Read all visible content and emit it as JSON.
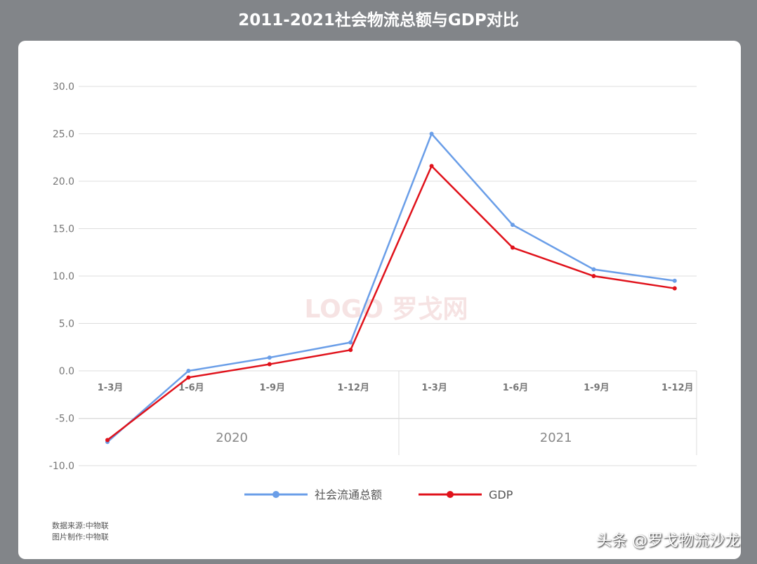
{
  "chart_data": {
    "type": "line",
    "title": "2011-2021社会物流总额与GDP对比",
    "categories": [
      "1-3月",
      "1-6月",
      "1-9月",
      "1-12月",
      "1-3月",
      "1-6月",
      "1-9月",
      "1-12月"
    ],
    "groups": [
      {
        "label": "2020",
        "span": 4
      },
      {
        "label": "2021",
        "span": 4
      }
    ],
    "ylim": [
      -10,
      30
    ],
    "yticks": [
      "30.0",
      "25.0",
      "20.0",
      "15.0",
      "10.0",
      "5.0",
      "0.0",
      "-5.0",
      "-10.0"
    ],
    "grid": true,
    "legend": "bottom",
    "series": [
      {
        "name": "社会流通总额",
        "color": "#6a9ee8",
        "values": [
          -7.5,
          0.0,
          1.4,
          3.0,
          25.0,
          15.4,
          10.7,
          9.5
        ]
      },
      {
        "name": "GDP",
        "color": "#e0121b",
        "values": [
          -7.3,
          -0.7,
          0.7,
          2.2,
          21.6,
          13.0,
          10.0,
          8.7
        ]
      }
    ]
  },
  "footer": {
    "source": "数据来源:中物联",
    "made_by": "图片制作:中物联",
    "watermark": "头条 @罗戈物流沙龙",
    "logo": "LOGO 罗戈网"
  }
}
